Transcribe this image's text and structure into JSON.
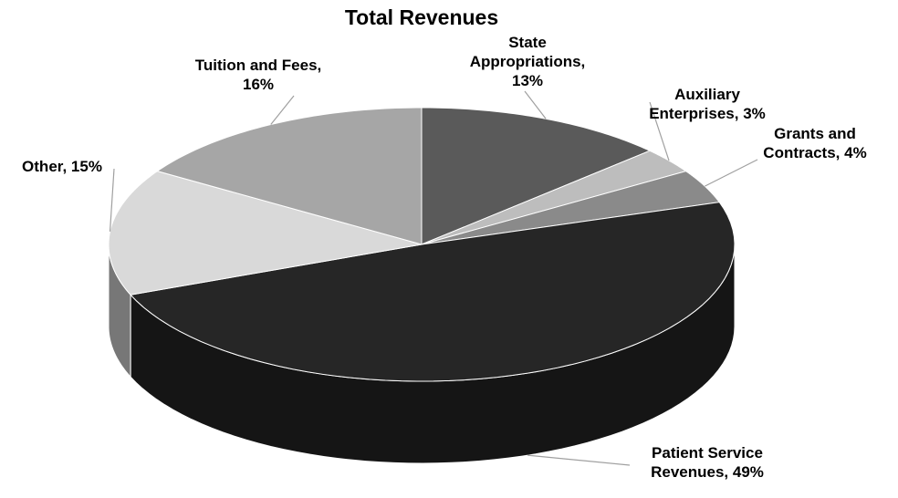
{
  "chart_data": {
    "type": "pie3d",
    "title": "Total Revenues",
    "categories": [
      "State Appropriations,",
      "Auxiliary Enterprises,",
      "Grants and Contracts,",
      "Patient Service Revenues,",
      "Other,",
      "Tuition and Fees,"
    ],
    "values": [
      13,
      3,
      4,
      49,
      15,
      16
    ],
    "value_labels": [
      "13%",
      "3%",
      "4%",
      "49%",
      "15%",
      "16%"
    ],
    "colors": [
      "#5a5a5a",
      "#bdbdbd",
      "#8a8a8a",
      "#262626",
      "#d9d9d9",
      "#a6a6a6"
    ]
  }
}
